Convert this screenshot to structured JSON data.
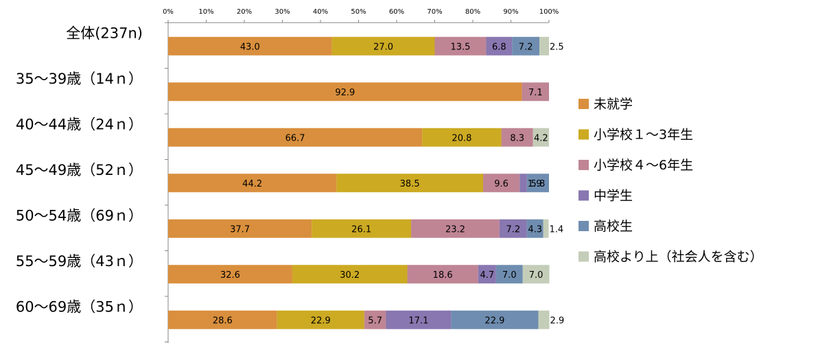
{
  "chart_data": {
    "type": "bar",
    "orientation": "horizontal",
    "stacked": true,
    "percent_stacked": true,
    "title": "",
    "xlabel": "",
    "ylabel": "",
    "xlim": [
      0,
      100
    ],
    "x_ticks": [
      "0%",
      "10%",
      "20%",
      "30%",
      "40%",
      "50%",
      "60%",
      "70%",
      "80%",
      "90%",
      "100%"
    ],
    "x_axis_position": "top",
    "grid": false,
    "legend_position": "right",
    "categories": [
      "全体(237n)",
      "35～39歳（14ｎ）",
      "40～44歳（24ｎ）",
      "45～49歳（52ｎ）",
      "50～54歳（69ｎ）",
      "55～59歳（43ｎ）",
      "60～69歳（35ｎ）"
    ],
    "series": [
      {
        "name": "未就学",
        "color": "#D98F3D",
        "values": [
          43.0,
          92.9,
          66.7,
          44.2,
          37.7,
          32.6,
          28.6
        ]
      },
      {
        "name": "小学校１～3年生",
        "color": "#CCAA22",
        "values": [
          27.0,
          null,
          20.8,
          38.5,
          26.1,
          30.2,
          22.9
        ]
      },
      {
        "name": "小学校４～6年生",
        "color": "#BF8594",
        "values": [
          13.5,
          7.1,
          8.3,
          9.6,
          23.2,
          18.6,
          5.7
        ]
      },
      {
        "name": "中学生",
        "color": "#8877B0",
        "values": [
          6.8,
          null,
          null,
          1.9,
          7.2,
          4.7,
          17.1
        ]
      },
      {
        "name": "高校生",
        "color": "#6F8DB0",
        "values": [
          7.2,
          null,
          null,
          5.8,
          4.3,
          7.0,
          22.9
        ]
      },
      {
        "name": "高校より上（社会人を含む）",
        "color": "#C4CDB8",
        "values": [
          2.5,
          null,
          4.2,
          null,
          1.4,
          7.0,
          2.9
        ]
      }
    ]
  }
}
